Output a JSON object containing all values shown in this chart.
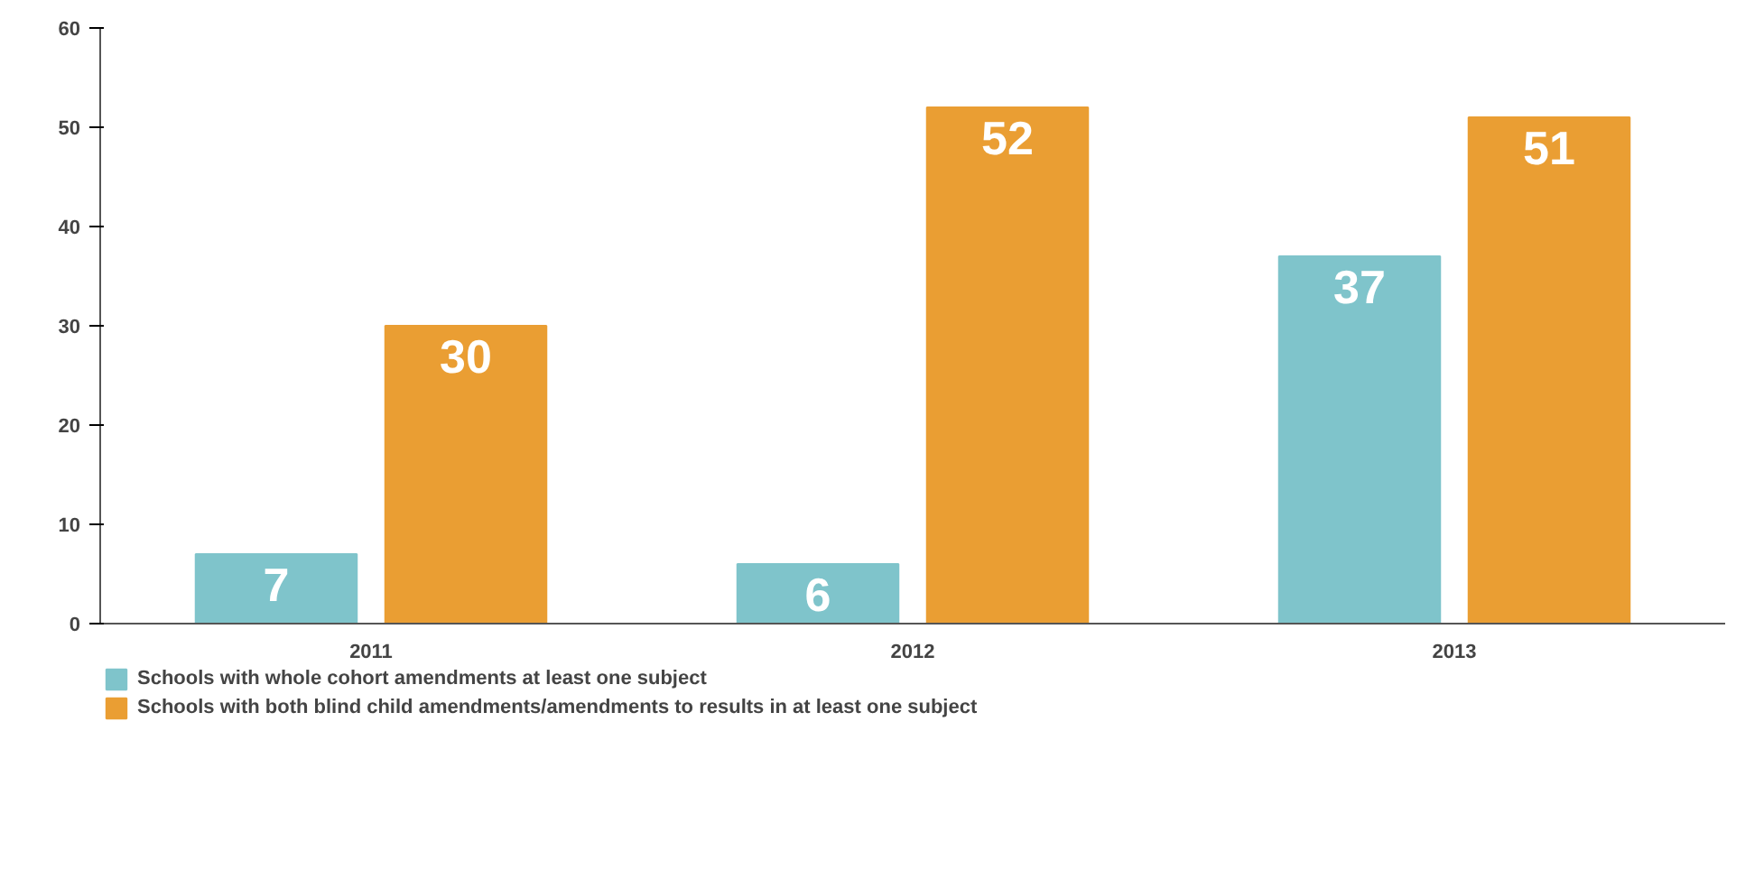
{
  "chart_data": {
    "type": "bar",
    "categories": [
      "2011",
      "2012",
      "2013"
    ],
    "series": [
      {
        "name": "Schools with whole cohort amendments at least one subject",
        "color": "#7fc4cb",
        "values": [
          7,
          6,
          37
        ]
      },
      {
        "name": "Schools with both blind child amendments/amendments to results in at least one subject",
        "color": "#ea9e33",
        "values": [
          30,
          52,
          51
        ]
      }
    ],
    "ylim": [
      0,
      60
    ],
    "yticks": [
      0,
      10,
      20,
      30,
      40,
      50,
      60
    ],
    "data_labels": true,
    "legend": "bottom left",
    "grid": false
  }
}
